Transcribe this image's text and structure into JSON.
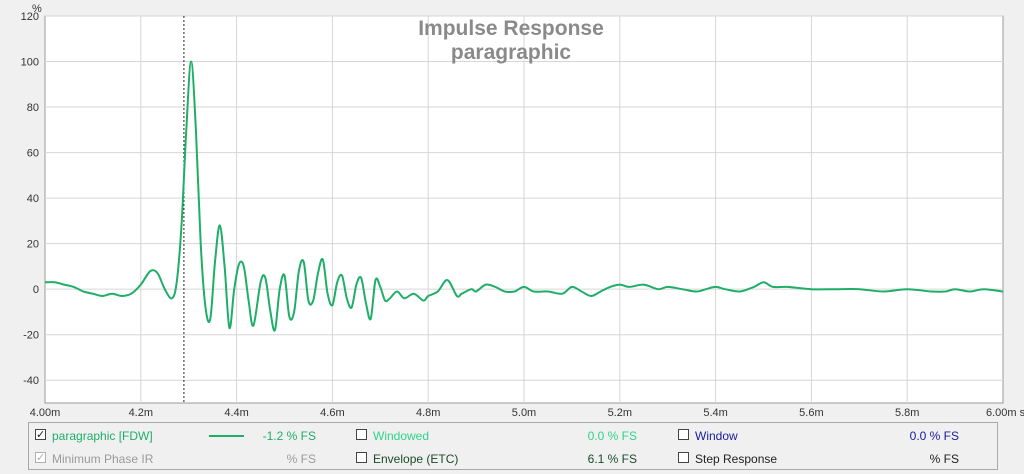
{
  "chart_data": {
    "type": "line",
    "title": "Impulse Response",
    "subtitle": "paragraphic",
    "ylabel": "%",
    "xunit": "s",
    "xlim": [
      4.0,
      6.0
    ],
    "ylim": [
      -50,
      120
    ],
    "xticks": [
      4.0,
      4.2,
      4.4,
      4.6,
      4.8,
      5.0,
      5.2,
      5.4,
      5.6,
      5.8,
      6.0
    ],
    "xtick_labels": [
      "4.00m",
      "4.2m",
      "4.4m",
      "4.6m",
      "4.8m",
      "5.0m",
      "5.2m",
      "5.4m",
      "5.6m",
      "5.8m",
      "6.00m s"
    ],
    "yticks": [
      -40,
      -20,
      0,
      20,
      40,
      60,
      80,
      100,
      120
    ],
    "ytick_labels": [
      "-40",
      "-20",
      "0",
      "20",
      "40",
      "60",
      "80",
      "100",
      "120"
    ],
    "grid": true,
    "cursor_x": 4.29,
    "series": [
      {
        "name": "paragraphic [FDW]",
        "color": "#1fae68",
        "x": [
          4.0,
          4.02,
          4.04,
          4.06,
          4.08,
          4.1,
          4.12,
          4.14,
          4.16,
          4.18,
          4.2,
          4.22,
          4.235,
          4.25,
          4.265,
          4.275,
          4.285,
          4.295,
          4.305,
          4.315,
          4.325,
          4.335,
          4.345,
          4.355,
          4.365,
          4.375,
          4.385,
          4.395,
          4.405,
          4.415,
          4.425,
          4.435,
          4.45,
          4.46,
          4.47,
          4.48,
          4.49,
          4.5,
          4.51,
          4.52,
          4.53,
          4.54,
          4.55,
          4.56,
          4.57,
          4.58,
          4.59,
          4.6,
          4.61,
          4.62,
          4.63,
          4.64,
          4.65,
          4.66,
          4.67,
          4.68,
          4.69,
          4.7,
          4.71,
          4.72,
          4.735,
          4.75,
          4.77,
          4.79,
          4.8,
          4.82,
          4.84,
          4.86,
          4.87,
          4.89,
          4.9,
          4.92,
          4.94,
          4.96,
          4.98,
          5.0,
          5.02,
          5.05,
          5.08,
          5.1,
          5.12,
          5.14,
          5.16,
          5.18,
          5.2,
          5.22,
          5.25,
          5.28,
          5.3,
          5.33,
          5.36,
          5.38,
          5.4,
          5.42,
          5.45,
          5.48,
          5.5,
          5.52,
          5.55,
          5.6,
          5.65,
          5.7,
          5.75,
          5.8,
          5.85,
          5.88,
          5.9,
          5.93,
          5.96,
          6.0
        ],
        "y": [
          3,
          3,
          2,
          1,
          -1,
          -2,
          -3,
          -2,
          -3,
          -2,
          2,
          8,
          7,
          0,
          -4,
          3,
          28,
          70,
          100,
          70,
          20,
          -8,
          -13,
          12,
          28,
          10,
          -17,
          0,
          11,
          10,
          -5,
          -16,
          3,
          5,
          -9,
          -18,
          0,
          6,
          -12,
          -10,
          8,
          12,
          -5,
          -5,
          7,
          13,
          -2,
          -7,
          3,
          6,
          -4,
          -8,
          2,
          5,
          -6,
          -13,
          4,
          1,
          -5,
          -4,
          -1,
          -4,
          -2,
          -5,
          -3,
          -1,
          4,
          -3,
          -2,
          0,
          -1,
          2,
          1,
          -1,
          -1,
          1,
          -1,
          -1,
          -2,
          1,
          -1,
          -3,
          -1,
          1,
          2,
          1,
          2,
          0,
          1,
          0,
          -1,
          0,
          1,
          0,
          -1,
          1,
          3,
          1,
          1,
          0,
          0,
          0,
          -1,
          0,
          -1,
          -1,
          0,
          -1,
          0,
          -1
        ]
      }
    ]
  },
  "legend": {
    "rows": [
      [
        {
          "label": "paragraphic [FDW]",
          "checked": true,
          "enabled": true,
          "value": "-1.2 % FS",
          "color": "#1fae68",
          "value_color": "#1fae68",
          "swatch": true
        },
        {
          "label": "Windowed",
          "checked": false,
          "enabled": true,
          "value": "0.0 % FS",
          "color": "#2ed38a",
          "value_color": "#2ed38a",
          "swatch": false
        },
        {
          "label": "Window",
          "checked": false,
          "enabled": true,
          "value": "0.0 % FS",
          "color": "#1a1aa0",
          "value_color": "#1a1aa0",
          "swatch": false
        }
      ],
      [
        {
          "label": "Minimum Phase IR",
          "checked": true,
          "enabled": false,
          "value": "% FS",
          "color": "#9a9a9a",
          "value_color": "#9a9a9a",
          "swatch": false
        },
        {
          "label": "Envelope (ETC)",
          "checked": false,
          "enabled": true,
          "value": "6.1 % FS",
          "color": "#1a4a2a",
          "value_color": "#1a4a2a",
          "swatch": false
        },
        {
          "label": "Step Response",
          "checked": false,
          "enabled": true,
          "value": "% FS",
          "color": "#222222",
          "value_color": "#222222",
          "swatch": false
        }
      ]
    ]
  }
}
